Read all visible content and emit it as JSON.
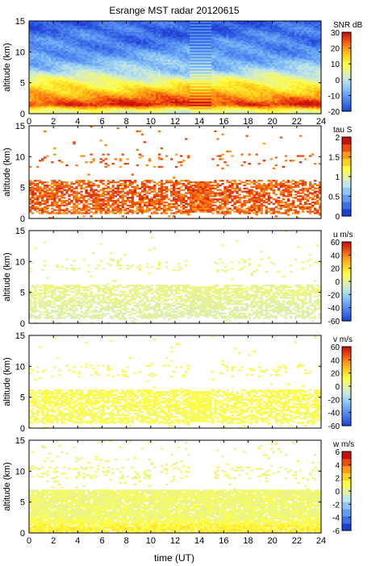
{
  "figure": {
    "title": "Esrange MST radar 20120615",
    "xlabel": "time (UT)"
  },
  "colormap": [
    "#1c3fd6",
    "#3d6fe8",
    "#5f9cf4",
    "#8fc6f6",
    "#bfe6e8",
    "#e6f29a",
    "#ffff40",
    "#ffd21e",
    "#ff9a12",
    "#f24a10",
    "#c8100c"
  ],
  "chart_data": [
    {
      "type": "heatmap",
      "quantity": "SNR",
      "colorbar_label": "SNR dB",
      "ylabel": "altitude (km)",
      "xlim": [
        0,
        24
      ],
      "ylim": [
        0,
        15
      ],
      "clim": [
        -20,
        30
      ],
      "x_ticks": [
        0,
        2,
        4,
        6,
        8,
        10,
        12,
        14,
        16,
        18,
        20,
        22,
        24
      ],
      "x_tick_labels": [
        "0",
        "2",
        "4",
        "6",
        "8",
        "10",
        "12",
        "14",
        "16",
        "18",
        "20",
        "22",
        "24"
      ],
      "y_ticks": [
        0,
        5,
        10,
        15
      ],
      "colorbar_ticks": [
        -20,
        -10,
        0,
        10,
        20,
        30
      ],
      "colorbar_tick_labels": [
        "-20",
        "-10",
        "0",
        "10",
        "20",
        "30"
      ],
      "colorbar_style": "continuous",
      "approx_profile_vs_altitude_km": [
        {
          "altitude_km": 0.5,
          "value": 5
        },
        {
          "altitude_km": 1.5,
          "value": 28
        },
        {
          "altitude_km": 2.5,
          "value": 22
        },
        {
          "altitude_km": 3.5,
          "value": 17
        },
        {
          "altitude_km": 4.5,
          "value": 12
        },
        {
          "altitude_km": 5.5,
          "value": 6
        },
        {
          "altitude_km": 7,
          "value": -3
        },
        {
          "altitude_km": 9,
          "value": -8
        },
        {
          "altitude_km": 11,
          "value": -12
        },
        {
          "altitude_km": 13,
          "value": -15
        },
        {
          "altitude_km": 15,
          "value": -16
        }
      ],
      "data_gap_hours": [
        13.3,
        14.9
      ],
      "coverage": "full",
      "notes": "SNR decreases with altitude; strongest echoes below 3 km"
    },
    {
      "type": "heatmap",
      "quantity": "tau",
      "colorbar_label": "tau S",
      "ylabel": "altitude (km)",
      "xlim": [
        0,
        24
      ],
      "ylim": [
        0,
        15
      ],
      "clim": [
        0,
        2
      ],
      "x_ticks": [
        0,
        2,
        4,
        6,
        8,
        10,
        12,
        14,
        16,
        18,
        20,
        22,
        24
      ],
      "x_tick_labels": [],
      "y_ticks": [
        0,
        5,
        10,
        15
      ],
      "colorbar_ticks": [
        0,
        0.5,
        1,
        1.5,
        2
      ],
      "colorbar_tick_labels": [
        "0",
        "0.5",
        "1",
        "1.5",
        "2"
      ],
      "colorbar_style": "discrete",
      "approx_profile_vs_altitude_km": [
        {
          "altitude_km": 1.5,
          "value": 1.9
        },
        {
          "altitude_km": 3,
          "value": 1.95
        },
        {
          "altitude_km": 4.5,
          "value": 1.95
        },
        {
          "altitude_km": 6,
          "value": 1.9
        },
        {
          "altitude_km": 9,
          "value": 1.9
        }
      ],
      "data_gap_hours": [
        13.3,
        14.9
      ],
      "coverage": "sparse",
      "notes": "Values mostly near 2 s between 1 and 6 km; isolated points near 9 km"
    },
    {
      "type": "heatmap",
      "quantity": "u",
      "colorbar_label": "u m/s",
      "ylabel": "altitude (km)",
      "xlim": [
        0,
        24
      ],
      "ylim": [
        0,
        15
      ],
      "clim": [
        -60,
        60
      ],
      "x_ticks": [
        0,
        2,
        4,
        6,
        8,
        10,
        12,
        14,
        16,
        18,
        20,
        22,
        24
      ],
      "x_tick_labels": [],
      "y_ticks": [
        0,
        5,
        10,
        15
      ],
      "colorbar_ticks": [
        -60,
        -40,
        -20,
        0,
        20,
        40,
        60
      ],
      "colorbar_tick_labels": [
        "-60",
        "-40",
        "-20",
        "0",
        "20",
        "40",
        "60"
      ],
      "colorbar_style": "continuous",
      "approx_profile_vs_altitude_km": [
        {
          "altitude_km": 2,
          "value": -2
        },
        {
          "altitude_km": 3.5,
          "value": 0
        },
        {
          "altitude_km": 5,
          "value": 2
        },
        {
          "altitude_km": 9,
          "value": 4
        }
      ],
      "data_gap_hours": [
        13.3,
        14.9
      ],
      "coverage": "sparse",
      "notes": "Zonal wind near zero throughout"
    },
    {
      "type": "heatmap",
      "quantity": "v",
      "colorbar_label": "v m/s",
      "ylabel": "altitude (km)",
      "xlim": [
        0,
        24
      ],
      "ylim": [
        0,
        15
      ],
      "clim": [
        -60,
        60
      ],
      "x_ticks": [
        0,
        2,
        4,
        6,
        8,
        10,
        12,
        14,
        16,
        18,
        20,
        22,
        24
      ],
      "x_tick_labels": [],
      "y_ticks": [
        0,
        5,
        10,
        15
      ],
      "colorbar_ticks": [
        -60,
        -40,
        -20,
        0,
        20,
        40,
        60
      ],
      "colorbar_tick_labels": [
        "-60",
        "-40",
        "-20",
        "0",
        "20",
        "40",
        "60"
      ],
      "colorbar_style": "continuous",
      "approx_profile_vs_altitude_km": [
        {
          "altitude_km": 2,
          "value": 8
        },
        {
          "altitude_km": 3.5,
          "value": 10
        },
        {
          "altitude_km": 5,
          "value": 10
        },
        {
          "altitude_km": 9,
          "value": 8
        }
      ],
      "data_gap_hours": [
        13.3,
        14.9
      ],
      "coverage": "sparse",
      "notes": "Meridional wind weakly positive"
    },
    {
      "type": "heatmap",
      "quantity": "w",
      "colorbar_label": "w m/s",
      "ylabel": "altitude (km)",
      "xlim": [
        0,
        24
      ],
      "ylim": [
        0,
        15
      ],
      "clim": [
        -6,
        6
      ],
      "x_ticks": [
        0,
        2,
        4,
        6,
        8,
        10,
        12,
        14,
        16,
        18,
        20,
        22,
        24
      ],
      "x_tick_labels": [
        "0",
        "2",
        "4",
        "6",
        "8",
        "10",
        "12",
        "14",
        "16",
        "18",
        "20",
        "22",
        "24"
      ],
      "y_ticks": [
        0,
        5,
        10,
        15
      ],
      "colorbar_ticks": [
        -6,
        -4,
        -2,
        0,
        2,
        4,
        6
      ],
      "colorbar_tick_labels": [
        "-6",
        "-4",
        "-2",
        "0",
        "2",
        "4",
        "6"
      ],
      "colorbar_style": "discrete",
      "approx_profile_vs_altitude_km": [
        {
          "altitude_km": 1,
          "value": 1.5
        },
        {
          "altitude_km": 2.5,
          "value": 0.5
        },
        {
          "altitude_km": 4,
          "value": 0.5
        },
        {
          "altitude_km": 6,
          "value": 0.5
        },
        {
          "altitude_km": 10,
          "value": 0.5
        }
      ],
      "data_gap_hours": [
        13.3,
        14.9
      ],
      "coverage": "dense",
      "notes": "Vertical wind near zero; slightly positive near 1 km"
    }
  ]
}
